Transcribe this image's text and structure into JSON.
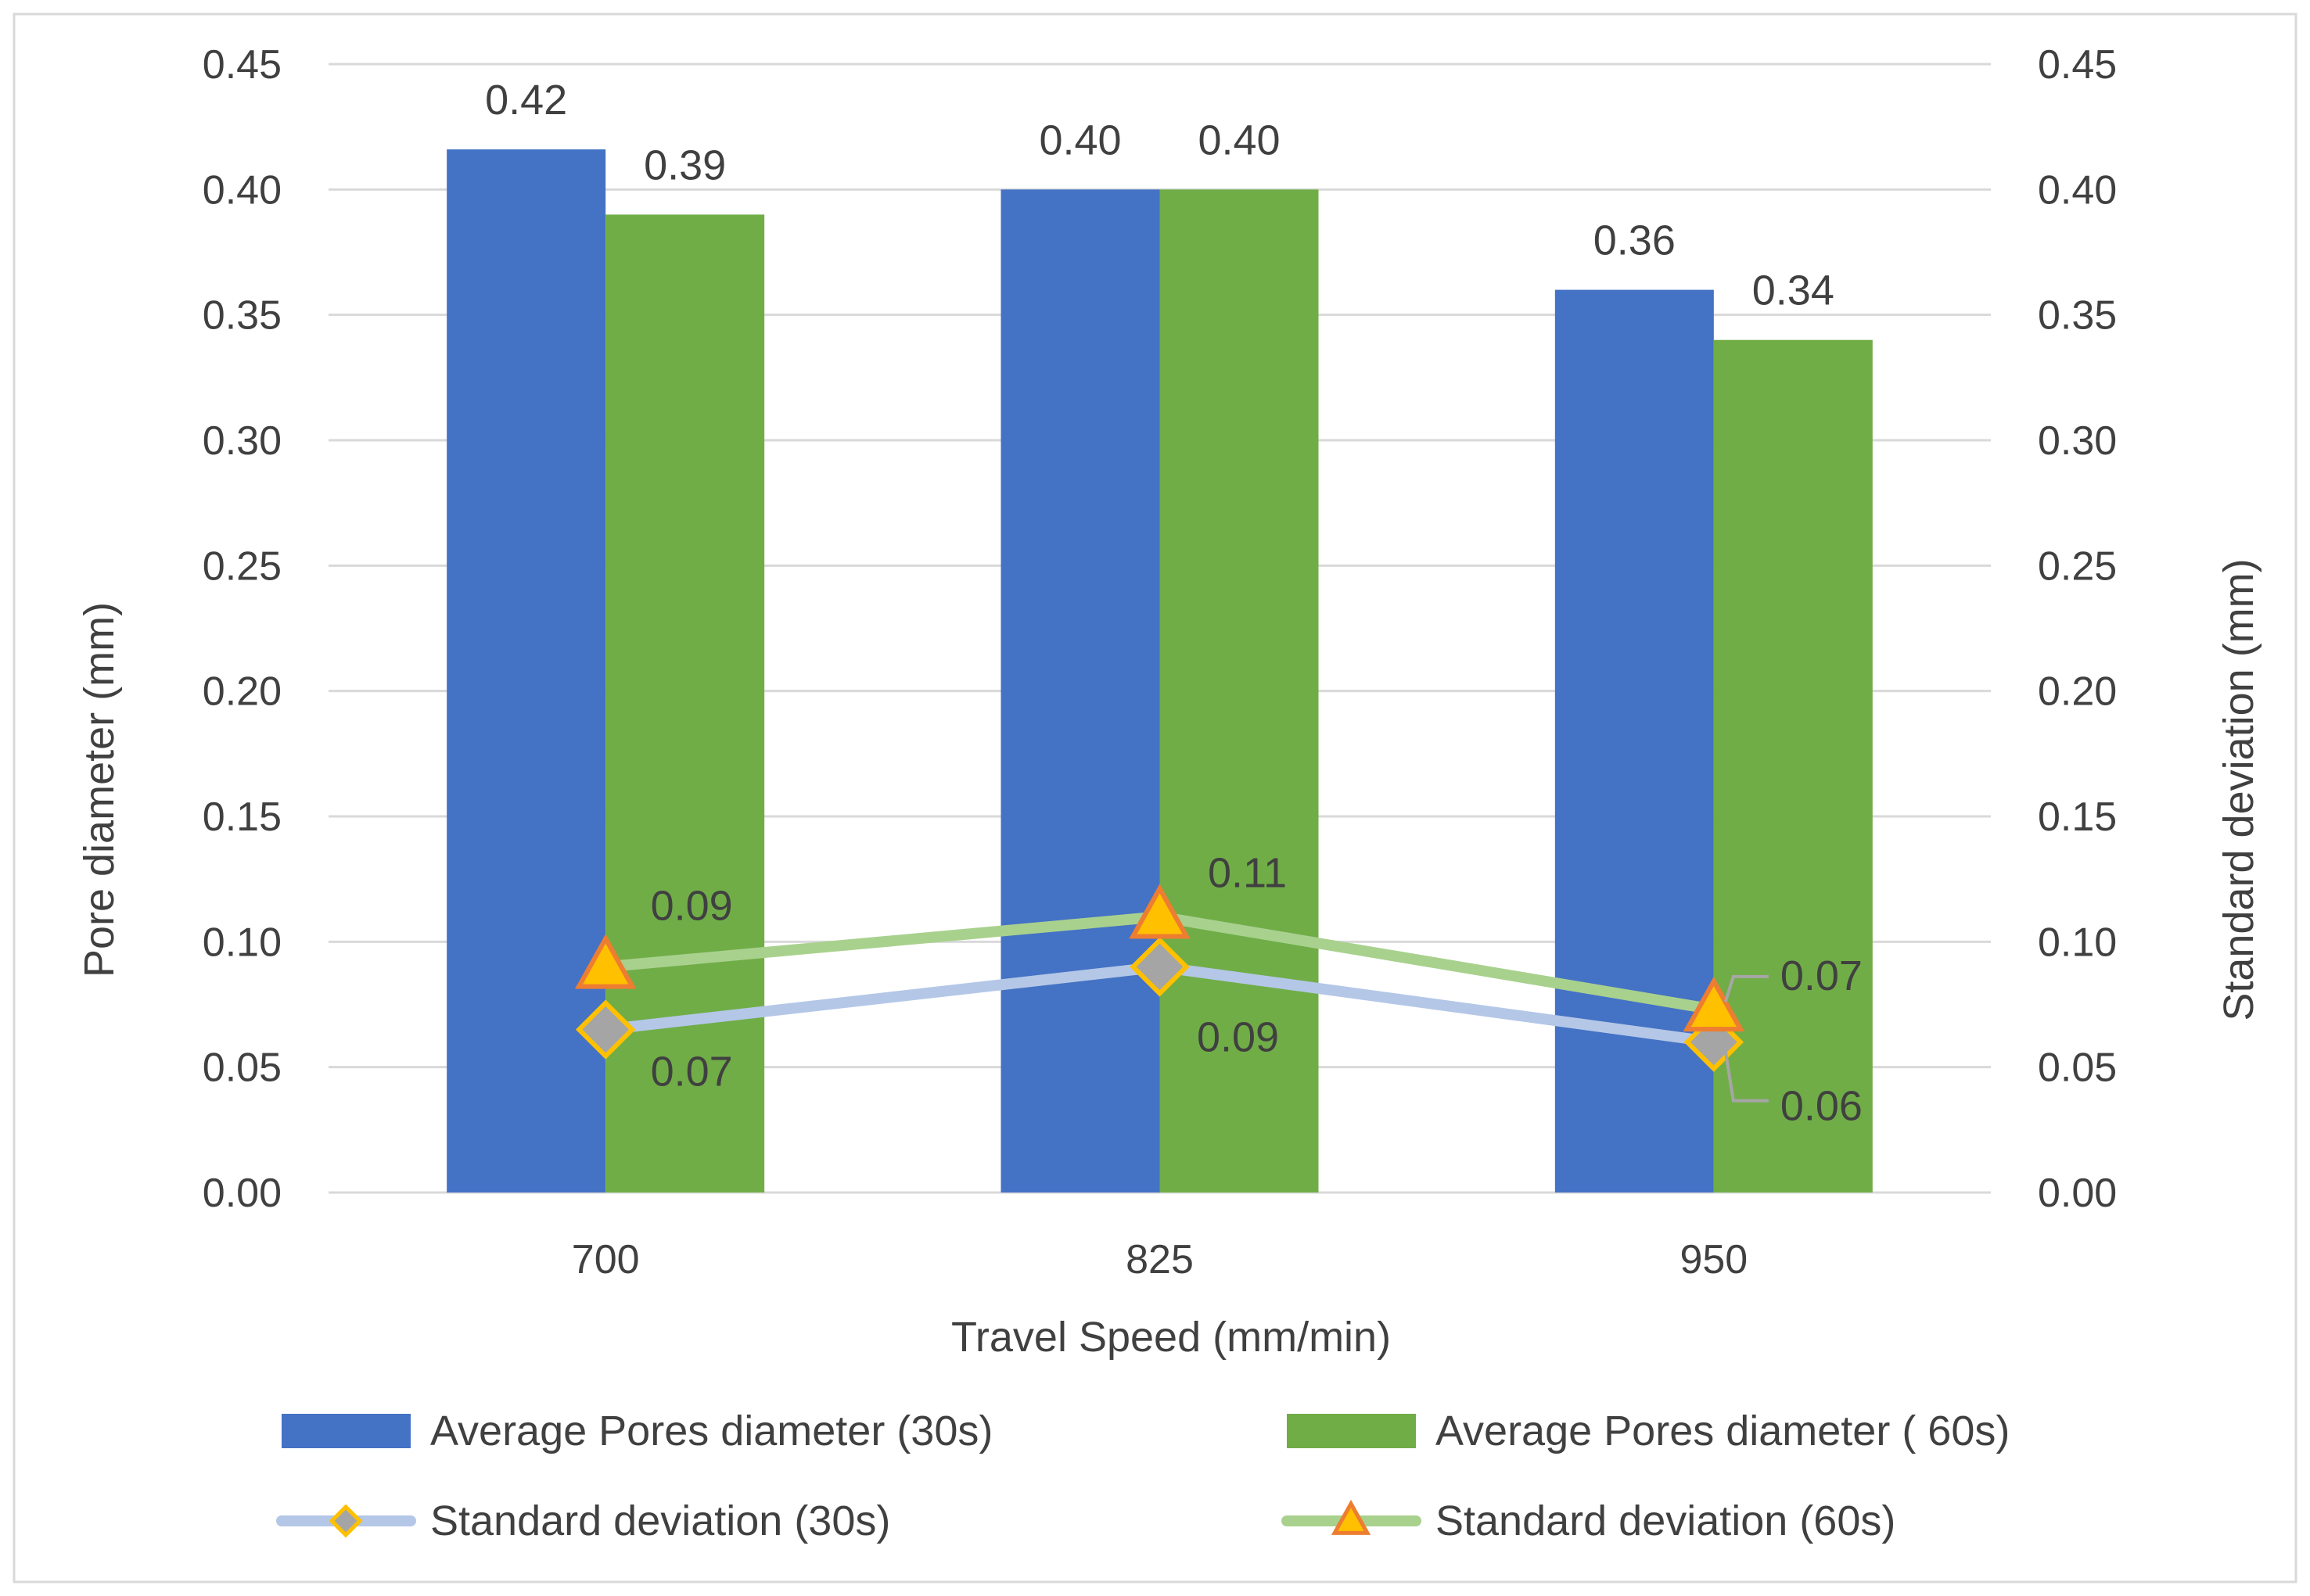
{
  "chart_data": {
    "type": "bar",
    "title": "",
    "xlabel": "Travel Speed (mm/min)",
    "ylabel": "Pore diameter  (mm)",
    "y2label": "Standard deviation (mm)",
    "categories": [
      "700",
      "825",
      "950"
    ],
    "ylim": [
      0,
      0.45
    ],
    "y2lim": [
      0,
      0.45
    ],
    "yticks": [
      "0.00",
      "0.05",
      "0.10",
      "0.15",
      "0.20",
      "0.25",
      "0.30",
      "0.35",
      "0.40",
      "0.45"
    ],
    "grid": true,
    "legend_position": "bottom",
    "series": [
      {
        "name": "Average Pores  diameter (30s)",
        "type": "bar",
        "axis": "left",
        "color": "#4472C4",
        "values": [
          0.416,
          0.4,
          0.36
        ],
        "labels": [
          "0.42",
          "0.40",
          "0.36"
        ]
      },
      {
        "name": "Average Pores  diameter ( 60s)",
        "type": "bar",
        "axis": "left",
        "color": "#70AD47",
        "values": [
          0.39,
          0.4,
          0.34
        ],
        "labels": [
          "0.39",
          "0.40",
          "0.34"
        ]
      },
      {
        "name": "Standard deviation (30s)",
        "type": "line",
        "axis": "right",
        "color": "#B4C7E7",
        "marker": "diamond",
        "marker_fill": "#A5A5A5",
        "marker_edge": "#FFC000",
        "values": [
          0.065,
          0.09,
          0.06
        ],
        "labels": [
          "0.07",
          "0.09",
          "0.06"
        ]
      },
      {
        "name": "Standard deviation (60s)",
        "type": "line",
        "axis": "right",
        "color": "#A9D18E",
        "marker": "triangle",
        "marker_fill": "#FFC000",
        "marker_edge": "#ED7D31",
        "values": [
          0.09,
          0.11,
          0.073
        ],
        "labels": [
          "0.09",
          "0.11",
          "0.07"
        ]
      }
    ]
  }
}
